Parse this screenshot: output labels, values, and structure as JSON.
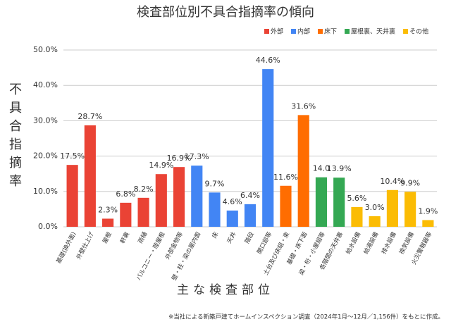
{
  "chart_data": {
    "type": "bar",
    "title": "検査部位別不具合指摘率の傾向",
    "x_label": "主な検査部位",
    "y_label": "不具合指摘率",
    "footnote": "※当社による新築戸建てホームインスペクション調査（2024年1月〜12月／1,156件）をもとに作成。",
    "categories": [
      "基礎(換外面)",
      "外壁仕上げ",
      "屋根",
      "軒裏",
      "雨樋",
      "バルコニー・陸屋根",
      "外部金物等",
      "壁・柱・梁の屋内面",
      "床",
      "天井",
      "階段",
      "開口部等",
      "土台及び床組・束",
      "基礎・床下面",
      "梁・桁・小屋組等",
      "各階間の天井裏",
      "給水設備",
      "給湯設備",
      "排水設備",
      "換気設備",
      "火災警報器等"
    ],
    "series": [
      {
        "name": "外部",
        "color": "#ea4335",
        "values": [
          17.5,
          28.7,
          2.3,
          6.8,
          8.2,
          14.9,
          16.9,
          null,
          null,
          null,
          null,
          null,
          null,
          null,
          null,
          null,
          null,
          null,
          null,
          null,
          null
        ],
        "value_labels": [
          "17.5%",
          "28.7%",
          "2.3%",
          "6.8%",
          "8.2%",
          "14.9%",
          "16.9%",
          null,
          null,
          null,
          null,
          null,
          null,
          null,
          null,
          null,
          null,
          null,
          null,
          null,
          null
        ]
      },
      {
        "name": "内部",
        "color": "#4285f4",
        "values": [
          null,
          null,
          null,
          null,
          null,
          null,
          null,
          17.3,
          9.7,
          4.6,
          6.4,
          44.6,
          null,
          null,
          null,
          null,
          null,
          null,
          null,
          null,
          null
        ],
        "value_labels": [
          null,
          null,
          null,
          null,
          null,
          null,
          null,
          "17.3%",
          "9.7%",
          "4.6%",
          "6.4%",
          "44.6%",
          null,
          null,
          null,
          null,
          null,
          null,
          null,
          null,
          null
        ]
      },
      {
        "name": "床下",
        "color": "#ff6d01",
        "values": [
          null,
          null,
          null,
          null,
          null,
          null,
          null,
          null,
          null,
          null,
          null,
          null,
          11.6,
          31.6,
          null,
          null,
          null,
          null,
          null,
          null,
          null
        ],
        "value_labels": [
          null,
          null,
          null,
          null,
          null,
          null,
          null,
          null,
          null,
          null,
          null,
          null,
          "11.6%",
          "31.6%",
          null,
          null,
          null,
          null,
          null,
          null,
          null
        ]
      },
      {
        "name": "屋根裏、天井裏",
        "color": "#34a853",
        "values": [
          null,
          null,
          null,
          null,
          null,
          null,
          null,
          null,
          null,
          null,
          null,
          null,
          null,
          null,
          14.0,
          13.9,
          null,
          null,
          null,
          null,
          null
        ],
        "value_labels": [
          null,
          null,
          null,
          null,
          null,
          null,
          null,
          null,
          null,
          null,
          null,
          null,
          null,
          null,
          "14.0",
          "13.9%",
          null,
          null,
          null,
          null,
          null
        ]
      },
      {
        "name": "その他",
        "color": "#fbbc04",
        "values": [
          null,
          null,
          null,
          null,
          null,
          null,
          null,
          null,
          null,
          null,
          null,
          null,
          null,
          null,
          null,
          null,
          5.6,
          3.0,
          10.4,
          9.9,
          1.9
        ],
        "value_labels": [
          null,
          null,
          null,
          null,
          null,
          null,
          null,
          null,
          null,
          null,
          null,
          null,
          null,
          null,
          null,
          null,
          "5.6%",
          "3.0%",
          "10.4%",
          "9.9%",
          "1.9%"
        ]
      }
    ],
    "ylim": [
      0,
      50
    ],
    "yticks": [
      {
        "value": 0,
        "label": "0.0%"
      },
      {
        "value": 10,
        "label": "10.0%"
      },
      {
        "value": 20,
        "label": "20.0%"
      },
      {
        "value": 30,
        "label": "30.0%"
      },
      {
        "value": 40,
        "label": "40.0%"
      },
      {
        "value": 50,
        "label": "50.0%"
      }
    ],
    "grid": true,
    "legend": "top-right"
  }
}
